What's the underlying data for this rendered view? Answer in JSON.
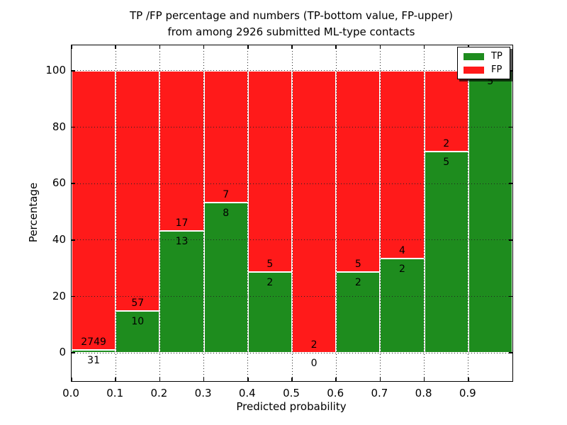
{
  "title": {
    "line1": "TP /FP percentage and numbers (TP-bottom value, FP-upper)",
    "line2": "from among 2926 submitted ML-type contacts"
  },
  "axes": {
    "x_label": "Predicted probability",
    "y_label": "Percentage",
    "x_tick_labels": [
      "0.0",
      "0.1",
      "0.2",
      "0.3",
      "0.4",
      "0.5",
      "0.6",
      "0.7",
      "0.8",
      "0.9"
    ],
    "y_tick_labels": [
      "0",
      "20",
      "40",
      "60",
      "80",
      "100"
    ]
  },
  "legend": {
    "items": [
      {
        "label": "TP",
        "color": "#1e8c1e"
      },
      {
        "label": "FP",
        "color": "#ff1a1a"
      }
    ]
  },
  "colors": {
    "tp_green": "#1e8c1e",
    "fp_red": "#ff1a1a",
    "grid": "#222222",
    "bar_edge": "#ffffff"
  },
  "chart_data": {
    "type": "bar",
    "subtype": "100-percent-stacked",
    "title": "TP /FP percentage and numbers (TP-bottom value, FP-upper) from among 2926 submitted ML-type contacts",
    "xlabel": "Predicted probability",
    "ylabel": "Percentage",
    "total_contacts": 2926,
    "bin_width": 0.1,
    "bin_starts": [
      0.0,
      0.1,
      0.2,
      0.3,
      0.4,
      0.5,
      0.6,
      0.7,
      0.8,
      0.9
    ],
    "series": [
      {
        "name": "TP",
        "color": "#1e8c1e",
        "counts": [
          31,
          10,
          13,
          8,
          2,
          0,
          2,
          2,
          5,
          5
        ]
      },
      {
        "name": "FP",
        "color": "#ff1a1a",
        "counts": [
          2749,
          57,
          17,
          7,
          5,
          2,
          5,
          4,
          2,
          0
        ]
      }
    ],
    "tp_percent": [
      1.1,
      14.9,
      43.3,
      53.3,
      28.6,
      0.0,
      28.6,
      33.3,
      71.4,
      100.0
    ],
    "xlim": [
      0,
      1
    ],
    "ylim": [
      -10,
      109
    ],
    "x_ticks": [
      0,
      0.1,
      0.2,
      0.3,
      0.4,
      0.5,
      0.6,
      0.7,
      0.8,
      0.9
    ],
    "y_ticks": [
      0,
      20,
      40,
      60,
      80,
      100
    ],
    "grid": true,
    "grid_style": "dotted",
    "legend_position": "upper right",
    "annotation_rule": "FP count printed above TP/FP boundary, TP count printed below boundary"
  }
}
